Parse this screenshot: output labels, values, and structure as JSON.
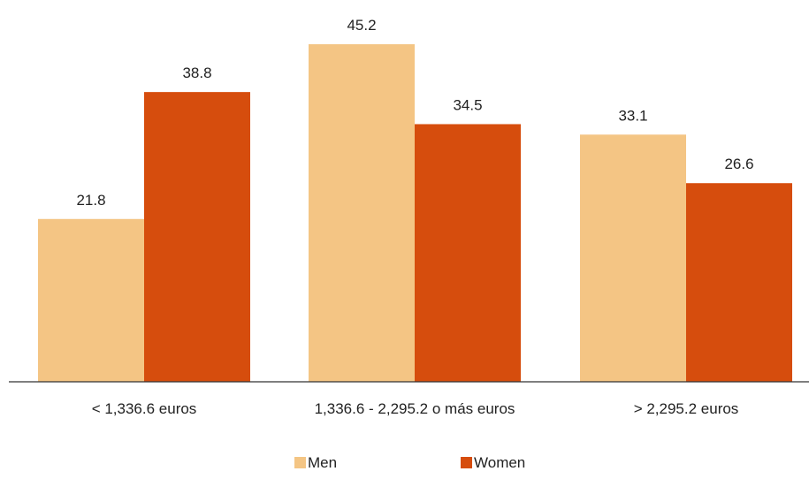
{
  "chart_data": {
    "type": "bar",
    "categories": [
      "< 1,336.6 euros",
      "1,336.6 - 2,295.2 o más euros",
      "> 2,295.2 euros"
    ],
    "series": [
      {
        "name": "Men",
        "values": [
          21.8,
          45.2,
          33.1
        ],
        "color": "#F4C584"
      },
      {
        "name": "Women",
        "values": [
          38.8,
          34.5,
          26.6
        ],
        "color": "#D64D0D"
      }
    ],
    "title": "",
    "xlabel": "",
    "ylabel": "",
    "ylim": [
      0,
      50
    ],
    "grid": false,
    "legend_position": "bottom-center"
  }
}
